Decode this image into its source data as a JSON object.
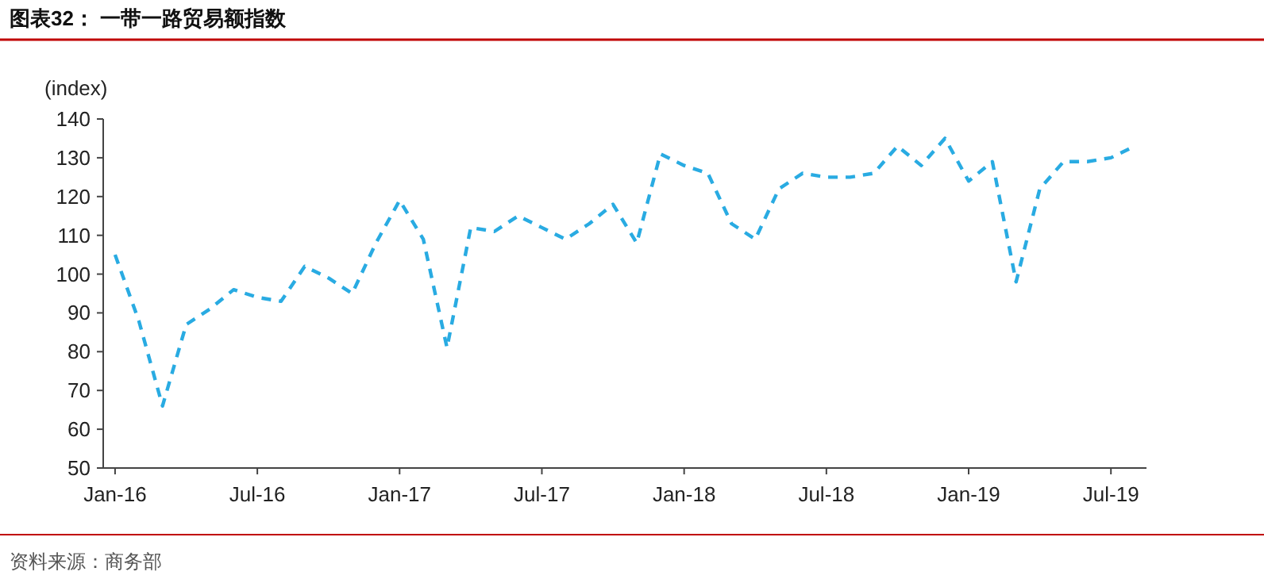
{
  "chart_data": {
    "type": "line",
    "title": "图表32：  一带一路贸易额指数",
    "ylabel": "(index)",
    "annotations": [
      "资料来源：商务部"
    ],
    "categories": [
      "Jan-16",
      null,
      null,
      null,
      null,
      null,
      "Jul-16",
      null,
      null,
      null,
      null,
      null,
      "Jan-17",
      null,
      null,
      null,
      null,
      null,
      "Jul-17",
      null,
      null,
      null,
      null,
      null,
      "Jan-18",
      null,
      null,
      null,
      null,
      null,
      "Jul-18",
      null,
      null,
      null,
      null,
      null,
      "Jan-19",
      null,
      null,
      null,
      null,
      null,
      "Jul-19",
      null
    ],
    "series": [
      {
        "color": "#29abe2",
        "values": [
          105,
          88,
          66,
          87,
          91,
          96,
          94,
          93,
          102,
          99,
          95,
          108,
          119,
          109,
          81,
          112,
          111,
          115,
          112,
          109,
          113,
          118,
          108,
          131,
          128,
          126,
          113,
          109,
          122,
          126,
          125,
          125,
          126,
          133,
          128,
          135,
          124,
          129,
          98,
          122,
          129,
          129,
          130,
          133
        ]
      }
    ],
    "ylim": [
      50,
      140
    ],
    "yticks": [
      50,
      60,
      70,
      80,
      90,
      100,
      110,
      120,
      130,
      140
    ],
    "line_style": "dashed",
    "marker": "none"
  }
}
